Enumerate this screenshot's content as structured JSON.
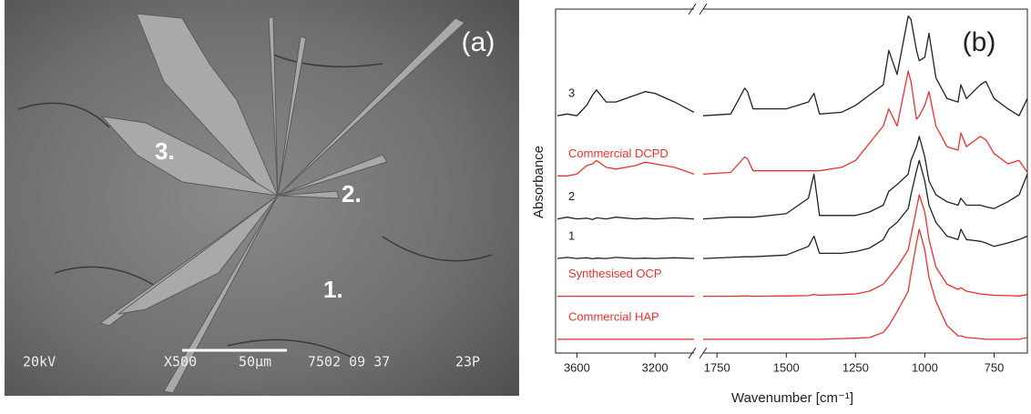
{
  "image": {
    "label": "(a)",
    "annotations": [
      "3.",
      "2.",
      "1."
    ],
    "info": [
      "20kV",
      "X500",
      "50µm",
      "7502 09 37",
      "23P"
    ]
  },
  "chart_data": {
    "type": "line",
    "panel_label": "(b)",
    "x_label": "Wavenumber [cm⁻¹]",
    "y_label": "Absorbance",
    "x_segments": [
      {
        "xlim": [
          3700,
          3000
        ],
        "xticks": [
          3600,
          3200
        ]
      },
      {
        "xlim": [
          1800,
          630
        ],
        "xticks": [
          1750,
          1500,
          1250,
          1000,
          750
        ]
      }
    ],
    "ylim": [
      0,
      10
    ],
    "x": [
      3700,
      3650,
      3600,
      3550,
      3520,
      3500,
      3450,
      3400,
      3300,
      3250,
      3200,
      3100,
      3000,
      1800,
      1700,
      1650,
      1640,
      1620,
      1500,
      1420,
      1400,
      1380,
      1300,
      1250,
      1200,
      1150,
      1130,
      1100,
      1060,
      1050,
      1030,
      1020,
      1000,
      985,
      960,
      920,
      880,
      870,
      850,
      800,
      780,
      750,
      700,
      660,
      630
    ],
    "series": [
      {
        "name": "3",
        "color": "#222222",
        "values": [
          6.9,
          6.95,
          6.9,
          7.2,
          7.5,
          7.65,
          7.3,
          7.3,
          7.5,
          7.6,
          7.55,
          7.3,
          7.0,
          6.9,
          6.95,
          7.7,
          7.6,
          7.1,
          7.1,
          7.3,
          7.55,
          6.95,
          7.0,
          7.2,
          7.5,
          7.8,
          8.8,
          8.1,
          9.8,
          9.7,
          8.8,
          8.5,
          8.6,
          9.3,
          8.0,
          7.4,
          7.3,
          7.8,
          7.4,
          7.8,
          7.9,
          7.4,
          7.1,
          6.9,
          7.4
        ]
      },
      {
        "name": "Commercial DCPD",
        "color": "#e8312f",
        "values": [
          5.15,
          5.15,
          5.2,
          5.45,
          5.5,
          5.6,
          5.4,
          5.35,
          5.45,
          5.55,
          5.5,
          5.4,
          5.2,
          5.2,
          5.25,
          5.7,
          5.65,
          5.3,
          5.3,
          5.3,
          5.3,
          5.3,
          5.4,
          5.6,
          6.1,
          6.6,
          7.1,
          6.6,
          8.2,
          7.9,
          6.8,
          6.9,
          7.2,
          7.6,
          6.6,
          6.0,
          5.9,
          6.4,
          6.0,
          6.3,
          6.2,
          5.8,
          5.5,
          5.6,
          5.25
        ]
      },
      {
        "name": "2",
        "color": "#222222",
        "values": [
          3.9,
          3.95,
          3.9,
          3.92,
          3.88,
          3.93,
          3.9,
          3.95,
          3.9,
          3.92,
          3.9,
          3.93,
          3.9,
          3.9,
          3.95,
          3.95,
          3.95,
          3.95,
          4.05,
          4.5,
          5.2,
          4.0,
          4.0,
          4.0,
          4.1,
          4.3,
          4.7,
          4.9,
          5.2,
          5.6,
          6.0,
          6.3,
          5.7,
          5.0,
          4.6,
          4.4,
          4.3,
          4.5,
          4.3,
          4.3,
          4.25,
          4.2,
          4.4,
          4.6,
          5.2
        ]
      },
      {
        "name": "1",
        "color": "#222222",
        "values": [
          2.75,
          2.78,
          2.75,
          2.77,
          2.74,
          2.76,
          2.75,
          2.78,
          2.75,
          2.76,
          2.75,
          2.77,
          2.75,
          2.75,
          2.78,
          2.8,
          2.8,
          2.8,
          2.85,
          3.1,
          3.4,
          2.9,
          2.9,
          2.95,
          3.05,
          3.3,
          3.6,
          3.8,
          4.2,
          4.6,
          5.3,
          5.6,
          5.0,
          4.3,
          3.8,
          3.4,
          3.3,
          3.6,
          3.3,
          3.25,
          3.2,
          3.1,
          3.2,
          3.3,
          3.4
        ]
      },
      {
        "name": "Synthesised OCP",
        "color": "#e8312f",
        "values": [
          1.65,
          1.65,
          1.65,
          1.65,
          1.65,
          1.65,
          1.65,
          1.65,
          1.65,
          1.65,
          1.65,
          1.65,
          1.65,
          1.65,
          1.65,
          1.66,
          1.66,
          1.65,
          1.66,
          1.67,
          1.7,
          1.68,
          1.7,
          1.72,
          1.8,
          2.0,
          2.2,
          2.5,
          3.0,
          3.4,
          4.2,
          4.6,
          4.1,
          3.3,
          2.5,
          2.0,
          1.85,
          1.9,
          1.8,
          1.72,
          1.7,
          1.68,
          1.67,
          1.66,
          1.7
        ]
      },
      {
        "name": "Commercial HAP",
        "color": "#e8312f",
        "values": [
          0.4,
          0.4,
          0.4,
          0.4,
          0.4,
          0.4,
          0.4,
          0.4,
          0.4,
          0.4,
          0.4,
          0.4,
          0.4,
          0.4,
          0.4,
          0.4,
          0.4,
          0.4,
          0.4,
          0.4,
          0.4,
          0.4,
          0.42,
          0.43,
          0.45,
          0.6,
          0.8,
          1.2,
          1.8,
          2.3,
          3.2,
          3.6,
          3.0,
          2.2,
          1.5,
          0.8,
          0.5,
          0.5,
          0.45,
          0.42,
          0.4,
          0.4,
          0.4,
          0.4,
          0.45
        ]
      }
    ]
  }
}
